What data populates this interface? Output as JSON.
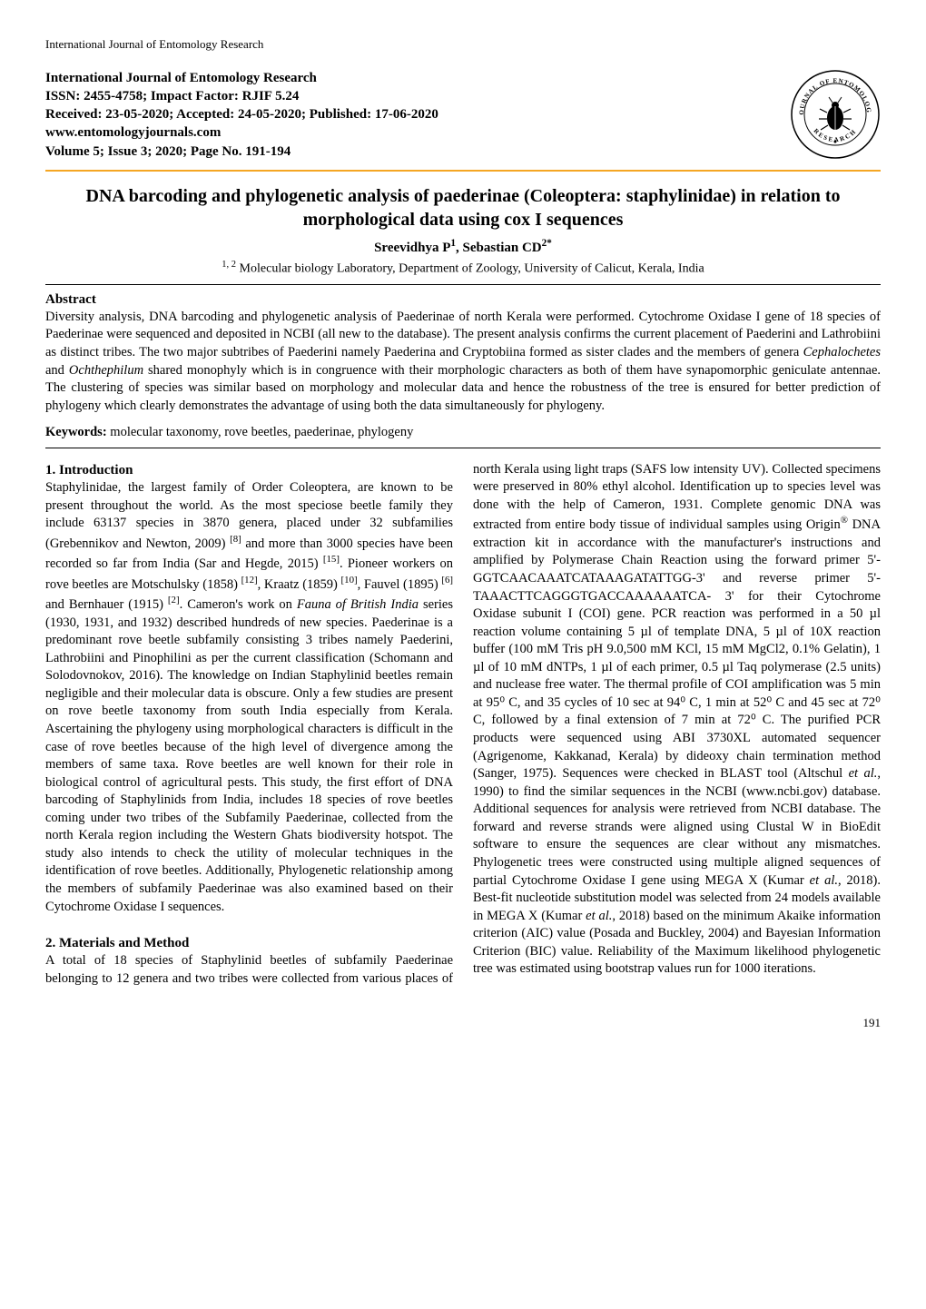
{
  "running_head": "International Journal of Entomology Research",
  "masthead": {
    "journal_name": "International Journal of Entomology Research",
    "issn_line": "ISSN: 2455-4758; Impact Factor: RJIF 5.24",
    "dates_line": "Received: 23-05-2020; Accepted: 24-05-2020; Published: 17-06-2020",
    "url": "www.entomologyjournals.com",
    "volume_line": "Volume 5; Issue 3; 2020; Page No. 191-194"
  },
  "logo": {
    "ring_text_top": "JOURNAL OF ENTOMOLOGY",
    "ring_text_bottom": "RESEARCH",
    "bg_color": "#ffffff",
    "ring_color": "#000000",
    "band_color": "#ffffff",
    "text_color": "#000000"
  },
  "title": "DNA barcoding and phylogenetic analysis of paederinae (Coleoptera: staphylinidae) in relation to morphological data using cox I sequences",
  "authors_html": "Sreevidhya P<sup>1</sup>, Sebastian CD<sup>2*</sup>",
  "affiliation_html": "<sup>1, 2</sup> Molecular biology Laboratory, Department of Zoology, University of Calicut, Kerala, India",
  "abstract": {
    "heading": "Abstract",
    "text": "Diversity analysis, DNA barcoding and phylogenetic analysis of Paederinae of north Kerala were performed. Cytochrome Oxidase I gene of 18 species of Paederinae were sequenced and deposited in NCBI (all new to the database). The present analysis confirms the current placement of Paederini and Lathrobiini as distinct tribes. The two major subtribes of Paederini namely Paederina and Cryptobiina formed as sister clades and the members of genera <span class=\"ital\">Cephalochetes</span> and <span class=\"ital\">Ochthephilum</span> shared monophyly which is in congruence with their morphologic characters as both of them have synapomorphic geniculate antennae. The clustering of species was similar based on morphology and molecular data and hence the robustness of the tree is ensured for better prediction of phylogeny which clearly demonstrates the advantage of using both the data simultaneously for phylogeny."
  },
  "keywords": {
    "heading": "Keywords:",
    "text": "molecular taxonomy, rove beetles, paederinae, phylogeny"
  },
  "body": {
    "section1_heading": "1. Introduction",
    "section1_text": "Staphylinidae, the largest family of Order Coleoptera, are known to be present throughout the world. As the most speciose beetle family they include 63137 species in 3870 genera, placed under 32 subfamilies (Grebennikov and Newton, 2009) <sup>[8]</sup> and more than 3000 species have been recorded so far from India (Sar and Hegde, 2015) <sup>[15]</sup>. Pioneer workers on rove beetles are Motschulsky (1858) <sup>[12]</sup>, Kraatz (1859) <sup>[10]</sup>, Fauvel (1895) <sup>[6]</sup> and Bernhauer (1915) <sup>[2]</sup>. Cameron's work on <span class=\"ital\">Fauna of British India</span> series (1930, 1931, and 1932) described hundreds of new species. Paederinae is a predominant rove beetle subfamily consisting 3 tribes namely Paederini, Lathrobiini and Pinophilini as per the current classification (Schomann and Solodovnokov, 2016). The knowledge on Indian Staphylinid beetles remain negligible and their molecular data is obscure. Only a few studies are present on rove beetle taxonomy from south India especially from Kerala. Ascertaining the phylogeny using morphological characters is difficult in the case of rove beetles because of the high level of divergence among the members of same taxa. Rove beetles are well known for their role in biological control of agricultural pests. This study, the first effort of DNA barcoding of Staphylinids from India, includes 18 species of rove beetles coming under two tribes of the Subfamily Paederinae, collected from the north Kerala region including the Western Ghats biodiversity hotspot. The study also intends to check the utility of molecular techniques in the identification of rove beetles. Additionally, Phylogenetic relationship among the members of subfamily Paederinae was also examined based on their Cytochrome Oxidase I sequences.",
    "section2_heading": "2. Materials and Method",
    "section2_text": "A total of 18 species of Staphylinid beetles of subfamily Paederinae belonging to 12 genera and two tribes were collected from various places of north Kerala using light traps (SAFS low intensity UV). Collected specimens were preserved in 80% ethyl alcohol. Identification up to species level was done with the help of Cameron, 1931. Complete genomic DNA was extracted from entire body tissue of individual samples using Origin<sup>®</sup> DNA extraction kit in accordance with the manufacturer's instructions and amplified by Polymerase Chain Reaction using the forward primer 5'-GGTCAACAAATCATAAAGATATTGG-3' and reverse primer 5'-TAAACTTCAGGGTGACCAAAAAATCA- 3' for their Cytochrome Oxidase subunit I (COI) gene. PCR reaction was performed in a 50 µl reaction volume containing 5 µl of template DNA, 5 µl of 10X reaction buffer (100 mM Tris pH 9.0,500 mM KCl, 15 mM MgCl2, 0.1% Gelatin), 1 µl of 10 mM dNTPs, 1 µl of each primer, 0.5 µl Taq polymerase (2.5 units) and nuclease free water. The thermal profile of COI amplification was 5 min at 95⁰ C, and 35 cycles of 10 sec at 94⁰ C, 1 min at 52⁰ C and 45 sec at 72⁰ C, followed by a final extension of 7 min at 72⁰ C. The purified PCR products were sequenced using ABI 3730XL automated sequencer (Agrigenome, Kakkanad, Kerala) by dideoxy chain termination method (Sanger, 1975). Sequences were checked in BLAST tool (Altschul <span class=\"ital\">et al.</span>, 1990) to find the similar sequences in the NCBI (www.ncbi.gov) database. Additional sequences for analysis were retrieved from NCBI database. The forward and reverse strands were aligned using Clustal W in BioEdit software to ensure the sequences are clear without any mismatches. Phylogenetic trees were constructed using multiple aligned sequences of partial Cytochrome Oxidase I gene using MEGA X (Kumar <span class=\"ital\">et al.</span>, 2018). Best-fit nucleotide substitution model was selected from 24 models available in MEGA X (Kumar <span class=\"ital\">et al.</span>, 2018) based on the minimum Akaike information criterion (AIC) value (Posada and Buckley, 2004) and Bayesian Information Criterion (BIC) value. Reliability of the Maximum likelihood phylogenetic tree was estimated using bootstrap values run for 1000 iterations."
  },
  "page_number": "191",
  "colors": {
    "rule": "#f5a623",
    "text": "#000000",
    "background": "#ffffff"
  },
  "typography": {
    "body_font": "Times New Roman",
    "body_size_pt": 11,
    "title_size_pt": 15,
    "heading_weight": "bold"
  }
}
